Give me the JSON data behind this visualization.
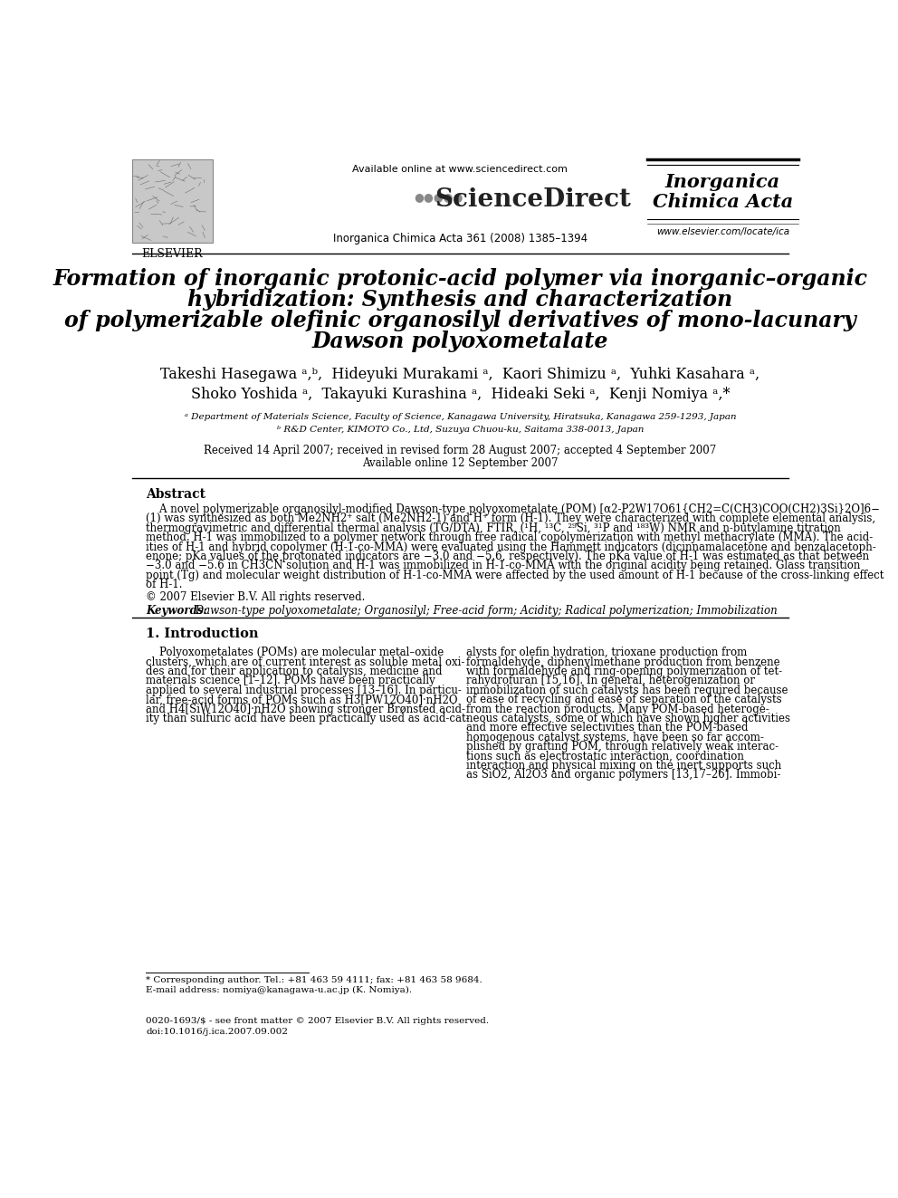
{
  "bg_color": "#ffffff",
  "title_line1": "Formation of inorganic protonic-acid polymer via inorganic–organic",
  "title_line2": "hybridization: Synthesis and characterization",
  "title_line3": "of polymerizable olefinic organosilyl derivatives of mono-lacunary",
  "title_line4": "Dawson polyoxometalate",
  "authors_line1": "Takeshi Hasegawa ᵃ,ᵇ,  Hideyuki Murakami ᵃ,  Kaori Shimizu ᵃ,  Yuhki Kasahara ᵃ,",
  "authors_line2": "Shoko Yoshida ᵃ,  Takayuki Kurashina ᵃ,  Hideaki Seki ᵃ,  Kenji Nomiya ᵃ,*",
  "affil_a": "ᵃ Department of Materials Science, Faculty of Science, Kanagawa University, Hiratsuka, Kanagawa 259-1293, Japan",
  "affil_b": "ᵇ R&D Center, KIMOTO Co., Ltd, Suzuya Chuou-ku, Saitama 338-0013, Japan",
  "received": "Received 14 April 2007; received in revised form 28 August 2007; accepted 4 September 2007",
  "available": "Available online 12 September 2007",
  "header_url": "Available online at www.sciencedirect.com",
  "journal_info": "Inorganica Chimica Acta 361 (2008) 1385–1394",
  "journal_name_line1": "Inorganica",
  "journal_name_line2": "Chimica Acta",
  "journal_url": "www.elsevier.com/locate/ica",
  "elsevier_text": "ELSEVIER",
  "abstract_title": "Abstract",
  "abstract_lines": [
    "    A novel polymerizable organosilyl-modified Dawson-type polyoxometalate (POM) [α2-P2W17O61{CH2=C(CH3)COO(CH2)3Si}2O]6−",
    "(1) was synthesized as both Me2NH2⁺ salt (Me2NH2-1) and H⁺ form (H-1). They were characterized with complete elemental analysis,",
    "thermogravimetric and differential thermal analysis (TG/DTA), FTIR, (¹H, ¹³C, ²⁹Si, ³¹P and ¹⁸³W) NMR and n-butylamine titration",
    "method. H-1 was immobilized to a polymer network through free radical copolymerization with methyl methacrylate (MMA). The acid-",
    "ities of H-1 and hybrid copolymer (H-1-co-MMA) were evaluated using the Hammett indicators (dicinnamalacetone and benzalacetoph-",
    "enone; pKa values of the protonated indicators are −3.0 and −5.6, respectively). The pKa value of H-1 was estimated as that between",
    "−3.0 and −5.6 in CH3CN solution and H-1 was immobilized in H-1-co-MMA with the original acidity being retained. Glass transition",
    "point (Tg) and molecular weight distribution of H-1-co-MMA were affected by the used amount of H-1 because of the cross-linking effect",
    "of H-1."
  ],
  "copyright": "© 2007 Elsevier B.V. All rights reserved.",
  "keywords_label": "Keywords:",
  "keywords_text": " Dawson-type polyoxometalate; Organosilyl; Free-acid form; Acidity; Radical polymerization; Immobilization",
  "section1_title": "1. Introduction",
  "section1_col1_lines": [
    "    Polyoxometalates (POMs) are molecular metal–oxide",
    "clusters, which are of current interest as soluble metal oxi-",
    "des and for their application to catalysis, medicine and",
    "materials science [1–12]. POMs have been practically",
    "applied to several industrial processes [13–16]. In particu-",
    "lar, free-acid forms of POMs such as H3[PW12O40]·nH2O",
    "and H4[SiW12O40]·nH2O showing stronger Brønsted acid-",
    "ity than sulfuric acid have been practically used as acid-cat-"
  ],
  "section1_col2_lines": [
    "alysts for olefin hydration, trioxane production from",
    "formaldehyde, diphenylmethane production from benzene",
    "with formaldehyde and ring-opening polymerization of tet-",
    "rahydrofuran [15,16]. In general, heterogenization or",
    "immobilization of such catalysts has been required because",
    "of ease of recycling and ease of separation of the catalysts",
    "from the reaction products. Many POM-based heteroge-",
    "neous catalysts, some of which have shown higher activities",
    "and more effective selectivities than the POM-based",
    "homogenous catalyst systems, have been so far accom-",
    "plished by grafting POM, through relatively weak interac-",
    "tions such as electrostatic interaction, coordination",
    "interaction and physical mixing on the inert supports such",
    "as SiO2, Al2O3 and organic polymers [13,17–26]. Immobi-"
  ],
  "footnote_star": "* Corresponding author. Tel.: +81 463 59 4111; fax: +81 463 58 9684.",
  "footnote_email": "E-mail address: nomiya@kanagawa-u.ac.jp (K. Nomiya).",
  "footer_issn": "0020-1693/$ - see front matter © 2007 Elsevier B.V. All rights reserved.",
  "footer_doi": "doi:10.1016/j.ica.2007.09.002"
}
